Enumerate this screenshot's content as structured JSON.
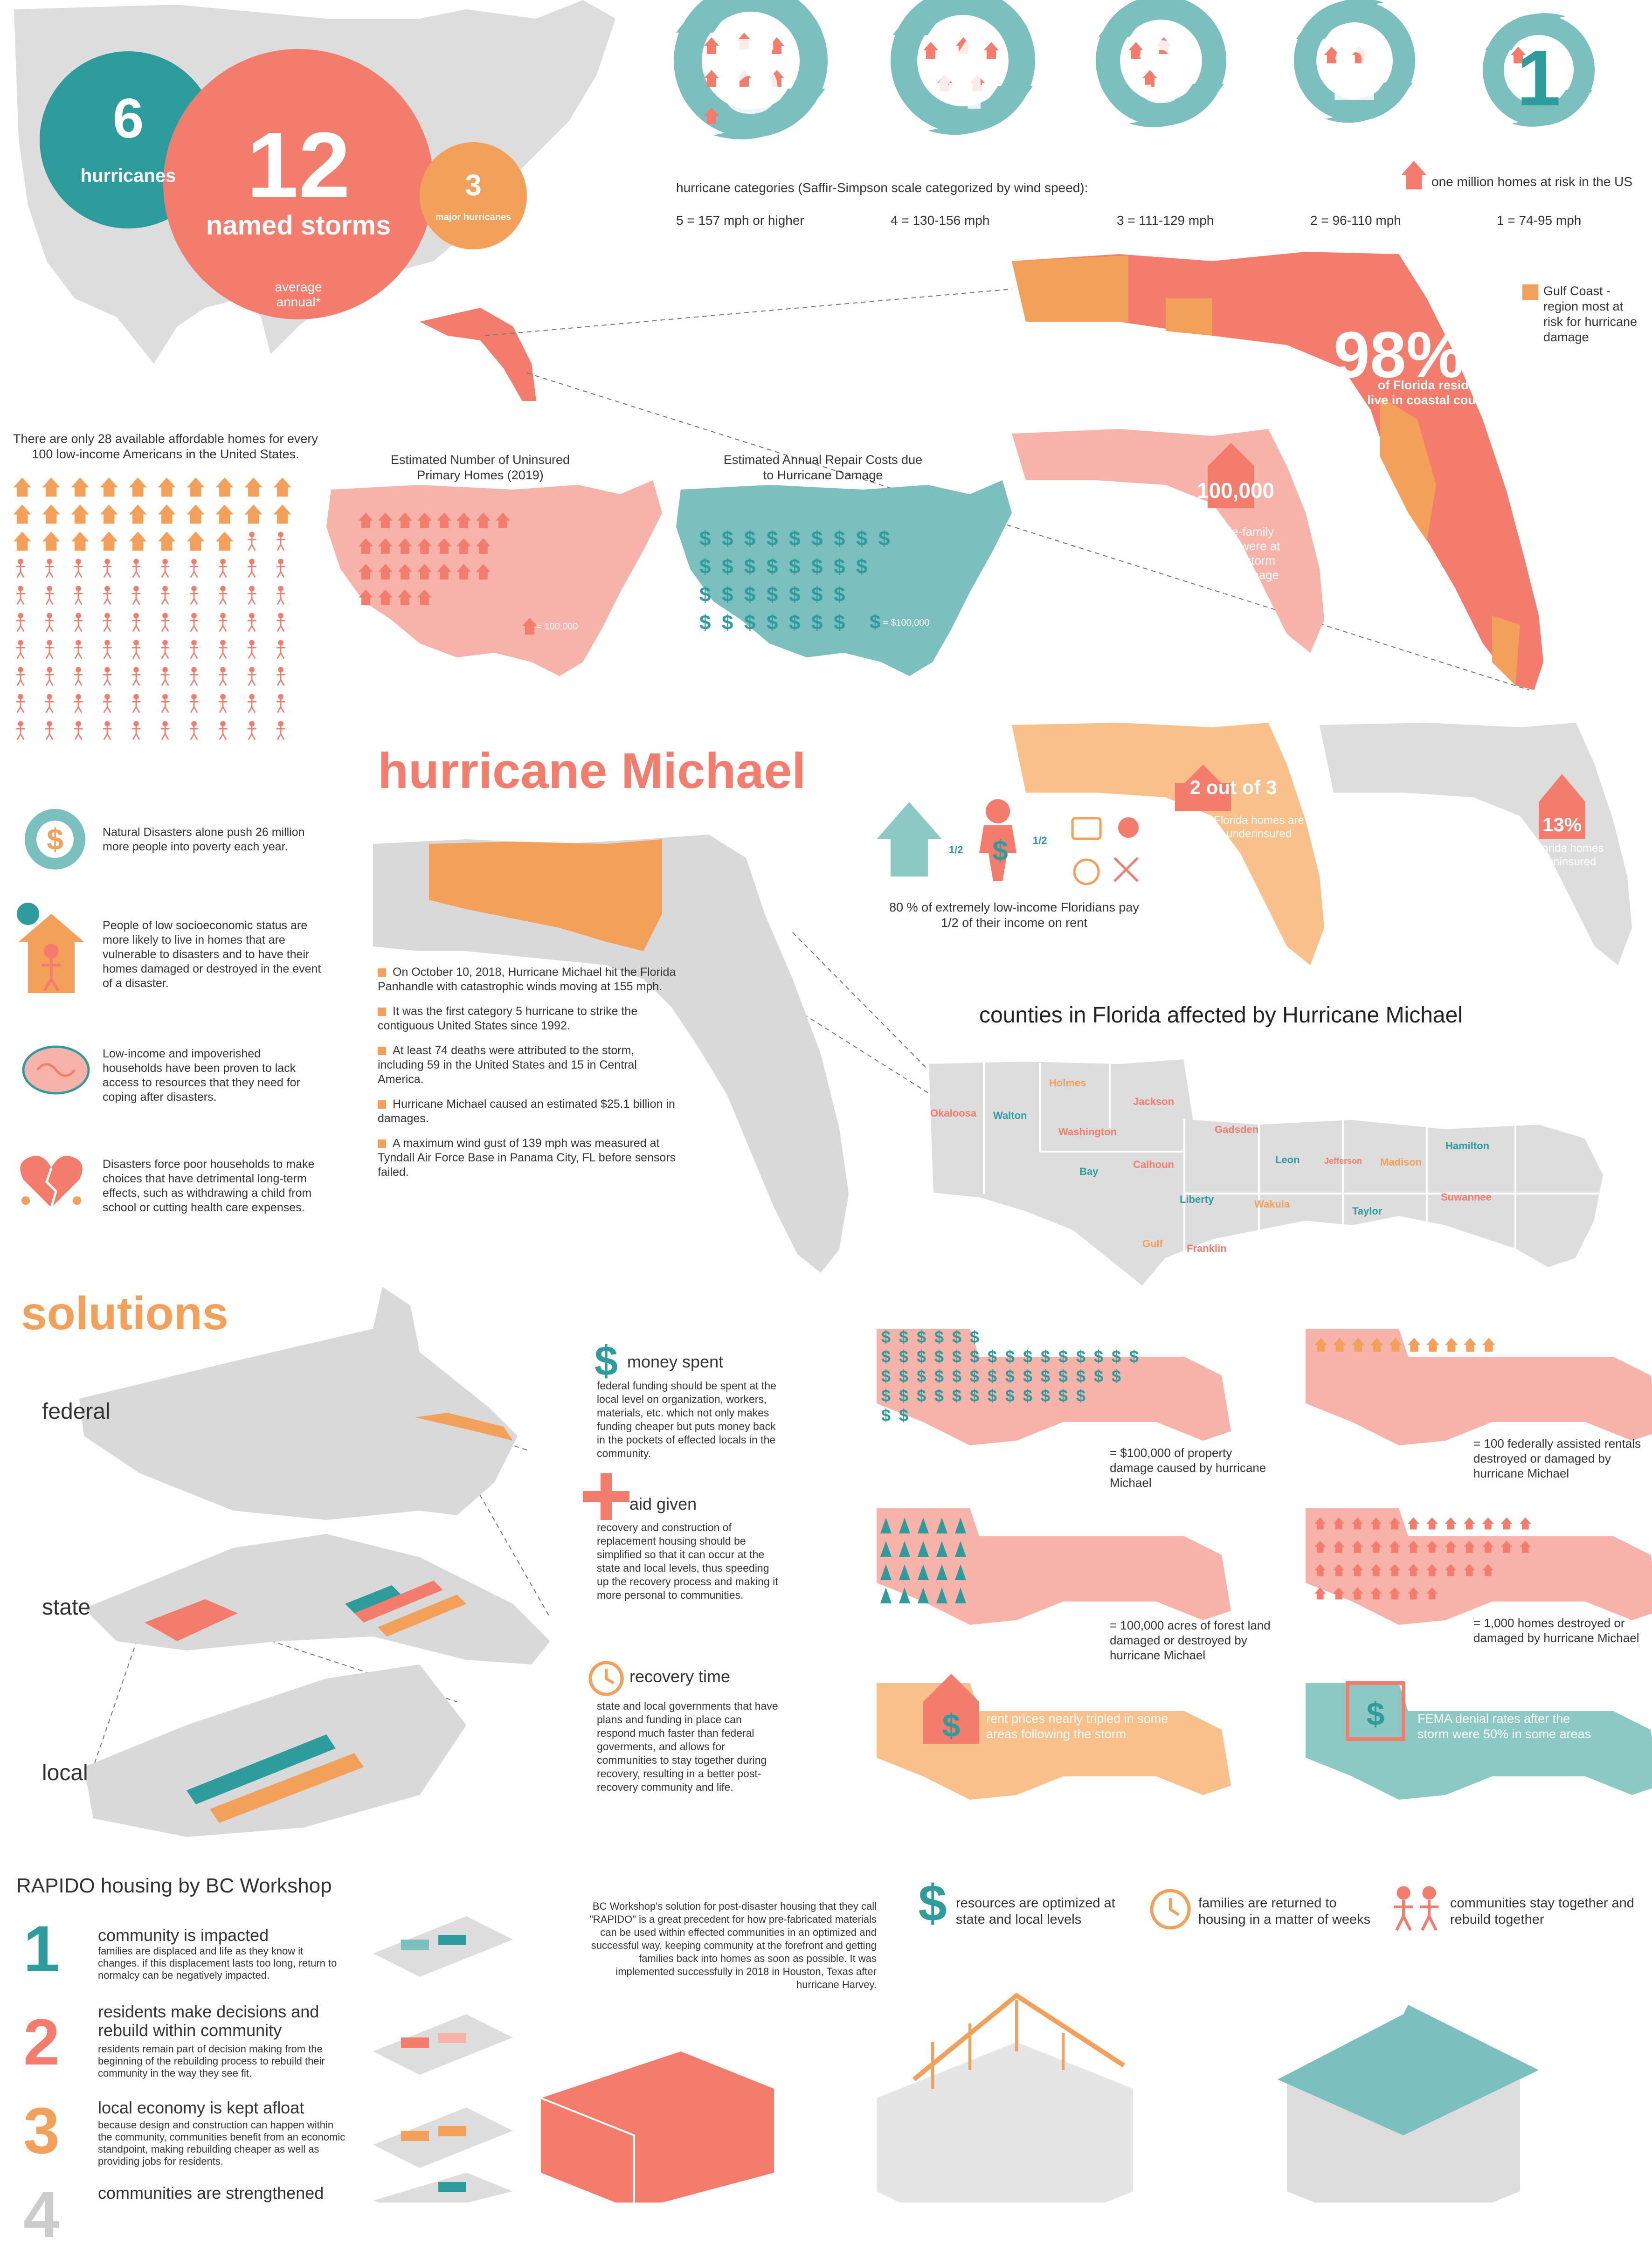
{
  "top": {
    "hurricanes_count": "6",
    "hurricanes_label": "hurricanes",
    "storms_count": "12",
    "storms_label": "named storms",
    "major_count": "3",
    "major_label": "major hurricanes",
    "average_label": "average annual*"
  },
  "categories": {
    "title": "hurricane categories (Saffir-Simpson scale categorized by wind speed):",
    "legend": "one million homes at risk in the US",
    "items": [
      {
        "num": "5",
        "speed": "5 = 157 mph or higher",
        "homes": 7
      },
      {
        "num": "4",
        "speed": "4 = 130-156  mph",
        "homes": 5
      },
      {
        "num": "3",
        "speed": "3 = 111-129 mph",
        "homes": 3
      },
      {
        "num": "2",
        "speed": "2 = 96-110 mph",
        "homes": 2
      },
      {
        "num": "1",
        "speed": "1 = 74-95 mph",
        "homes": 1
      }
    ]
  },
  "florida": {
    "gulf_legend": "Gulf Coast - region most at risk for hurricane damage",
    "coastal_pct": "98%",
    "coastal_text": "of Florida residents live in coastal counties",
    "surge_num": "100,000",
    "surge_text": "single-family homes were at risk for storm surge damage in 2020"
  },
  "affordable": {
    "text": "There are only 28 available affordable homes for every 100 low-income Americans in the United States.",
    "homes": 28,
    "people": 100
  },
  "uninsured_map": {
    "title": "Estimated Number of Uninsured Primary Homes (2019)",
    "legend": "= 100,000"
  },
  "repair_map": {
    "title": "Estimated Annual Repair Costs due to Hurricane Damage",
    "legend": "= $100,000"
  },
  "michael": {
    "title": "hurricane Michael",
    "rent_text": "80 % of extremely low-income Floridians pay 1/2 of their income on rent",
    "half_left": "1/2",
    "half_right": "1/2",
    "underinsured_big": "2 out of 3",
    "underinsured_text": "Florida homes are underinsured",
    "pct13_big": "13%",
    "pct13_text": "of Florida homes are uninsured",
    "counties_title": "counties in Florida affected by Hurricane Michael",
    "counties": [
      {
        "name": "Okaloosa",
        "color": "coral"
      },
      {
        "name": "Walton",
        "color": "teal"
      },
      {
        "name": "Holmes",
        "color": "orange"
      },
      {
        "name": "Washington",
        "color": "coral"
      },
      {
        "name": "Jackson",
        "color": "coral"
      },
      {
        "name": "Bay",
        "color": "teal"
      },
      {
        "name": "Calhoun",
        "color": "coral"
      },
      {
        "name": "Gadsden",
        "color": "coral"
      },
      {
        "name": "Leon",
        "color": "teal"
      },
      {
        "name": "Jefferson",
        "color": "coral"
      },
      {
        "name": "Madison",
        "color": "orange"
      },
      {
        "name": "Hamilton",
        "color": "teal"
      },
      {
        "name": "Suwannee",
        "color": "coral"
      },
      {
        "name": "Liberty",
        "color": "teal"
      },
      {
        "name": "Wakula",
        "color": "orange"
      },
      {
        "name": "Taylor",
        "color": "teal"
      },
      {
        "name": "Gulf",
        "color": "orange"
      },
      {
        "name": "Franklin",
        "color": "coral"
      }
    ],
    "facts": [
      "On October 10, 2018, Hurricane Michael hit the Florida Panhandle with catastrophic winds moving at 155 mph.",
      "It was the first category 5 hurricane to strike the contiguous United States since 1992.",
      "At least 74 deaths were attributed to the storm, including 59 in the United States and 15 in Central America.",
      "Hurricane Michael caused an estimated $25.1 billion in damages.",
      "A maximum wind gust of 139 mph was measured at Tyndall Air Force Base in Panama City, FL before sensors failed."
    ]
  },
  "poverty": [
    "Natural Disasters alone push 26 million more people into poverty each year.",
    "People of low socioeconomic status are more likely to live in homes that are vulnerable to disasters and to have their homes damaged or destroyed in the event of a disaster.",
    "Low-income and impoverished households have been proven to lack access to resources that they need for coping after disasters.",
    "Disasters force poor households to make choices that have detrimental long-term effects, such as withdrawing a child from school or cutting health care expenses."
  ],
  "solutions": {
    "title": "solutions",
    "levels": [
      "federal",
      "state",
      "local"
    ],
    "points": [
      {
        "title": "money spent",
        "text": "federal funding should be spent at the local level on organization, workers, materials, etc. which not only makes funding cheaper but puts money back in the pockets of effected locals in the community."
      },
      {
        "title": "aid given",
        "text": "recovery and construction of replacement housing should be simplified so that it can occur at the state and local levels, thus speeding up the recovery process and making it more personal to communities."
      },
      {
        "title": "recovery time",
        "text": "state and local governments that have plans and funding in place can respond much faster than federal goverments, and allows for communities to stay together during recovery, resulting in a better post-recovery community and life."
      }
    ],
    "maps": [
      {
        "legend": "= $100,000 of property damage caused by hurricane Michael"
      },
      {
        "legend": "= 100 federally assisted rentals destroyed or damaged by hurricane Michael"
      },
      {
        "legend": "= 100,000 acres of forest land damaged or destroyed by hurricane Michael"
      },
      {
        "legend": "= 1,000 homes destroyed or damaged by hurricane Michael"
      },
      {
        "legend": "rent prices nearly tripled in some areas following the storm"
      },
      {
        "legend": "FEMA denial rates after the storm were 50% in some areas"
      }
    ]
  },
  "rapido": {
    "title": "RAPIDO housing by BC Workshop",
    "steps": [
      {
        "num": "1",
        "title": "community is impacted",
        "text": "families are displaced and life as they know it changes. if this displacement lasts too long, return to normalcy can be negatively impacted."
      },
      {
        "num": "2",
        "title": "residents make decisions and rebuild within community",
        "text": "residents remain part of decision making from the beginning of the rebuilding process to rebuild their community in the way they see fit."
      },
      {
        "num": "3",
        "title": "local economy is kept afloat",
        "text": "because design and construction can happen within the community, communities benefit from an economic standpoint, making rebuilding cheaper as well as providing jobs for residents."
      },
      {
        "num": "4",
        "title": "communities are strengthened",
        "text": ""
      }
    ],
    "description": "BC Workshop's solution for post-disaster housing that they call \"RAPIDO\" is a great precedent for how pre-fabricated materials can be used within effected communities in an optimized and successful way, keeping community at the forefront and getting families back into homes as soon as possible. It was implemented successfully in 2018 in Houston, Texas after hurricane Harvey.",
    "benefits": [
      "resources are optimized at state and local levels",
      "families are returned to housing in a matter of weeks",
      "communities stay together and rebuild together"
    ]
  },
  "colors": {
    "teal": "#2e9c9c",
    "coral": "#f47c6c",
    "orange": "#f2a05a",
    "gray": "#d9d9d9",
    "pink": "#f7b3aa",
    "paleteal": "#8cc8c4"
  }
}
